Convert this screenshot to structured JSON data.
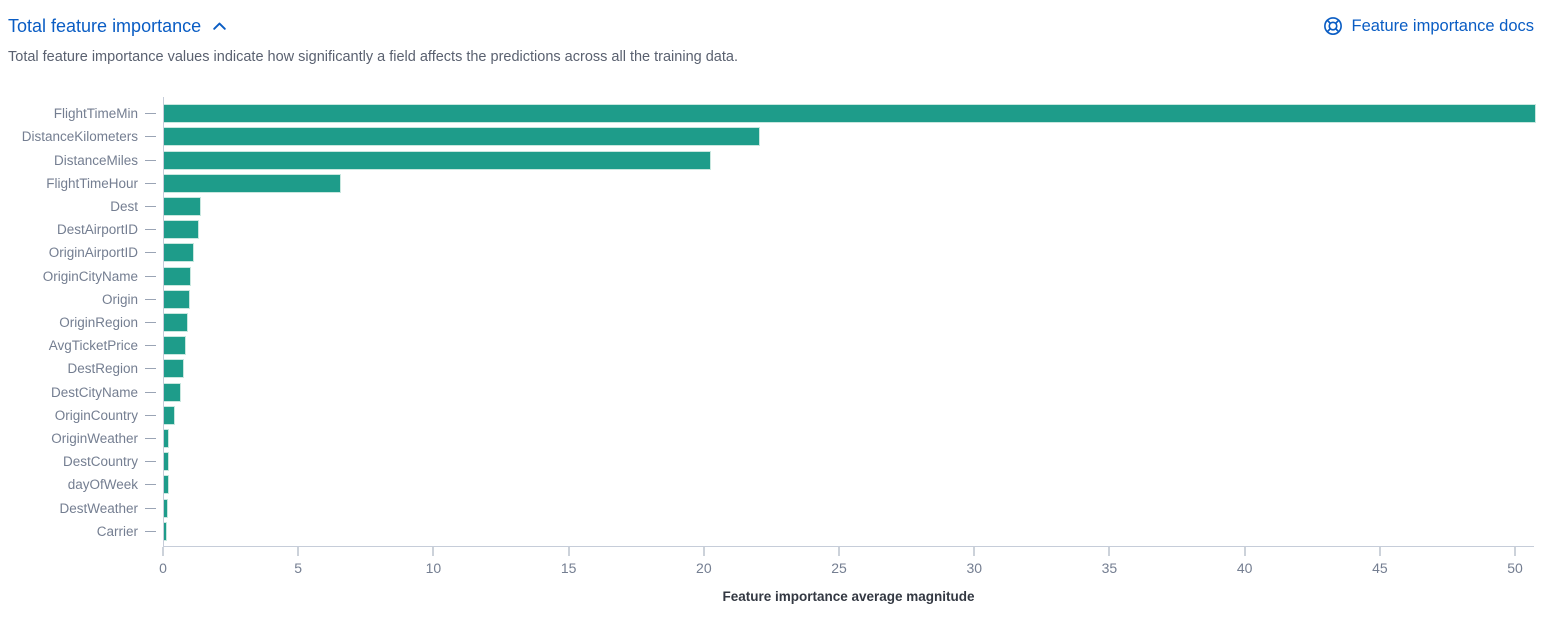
{
  "header": {
    "title": "Total feature importance",
    "collapse_icon": "chevron-up-icon",
    "docs_link_label": "Feature importance docs",
    "docs_link_icon": "help-lifebuoy-icon"
  },
  "description": "Total feature importance values indicate how significantly a field affects the predictions across all the training data.",
  "colors": {
    "bar": "#1e9c8a",
    "link": "#0a5dc4",
    "axis_line": "#c6cdd9",
    "tick_mark": "#9aa4b5",
    "tick_text": "#747e91",
    "axis_title_text": "#333842"
  },
  "chart_data": {
    "type": "bar",
    "orientation": "horizontal",
    "title": "Total feature importance",
    "xlabel": "Feature importance average magnitude",
    "ylabel": "",
    "categories": [
      "FlightTimeMin",
      "DistanceKilometers",
      "DistanceMiles",
      "FlightTimeHour",
      "Dest",
      "DestAirportID",
      "OriginAirportID",
      "OriginCityName",
      "Origin",
      "OriginRegion",
      "AvgTicketPrice",
      "DestRegion",
      "DestCityName",
      "OriginCountry",
      "OriginWeather",
      "DestCountry",
      "dayOfWeek",
      "DestWeather",
      "Carrier"
    ],
    "values": [
      50.7,
      22.0,
      20.2,
      6.5,
      1.33,
      1.27,
      1.07,
      0.96,
      0.93,
      0.85,
      0.79,
      0.7,
      0.6,
      0.38,
      0.16,
      0.15,
      0.13,
      0.12,
      0.08
    ],
    "x_ticks": [
      0,
      5,
      10,
      15,
      20,
      25,
      30,
      35,
      40,
      45,
      50
    ],
    "xlim": [
      0,
      50.7
    ],
    "grid": false,
    "legend": false,
    "bar_color": "#1e9c8a"
  }
}
